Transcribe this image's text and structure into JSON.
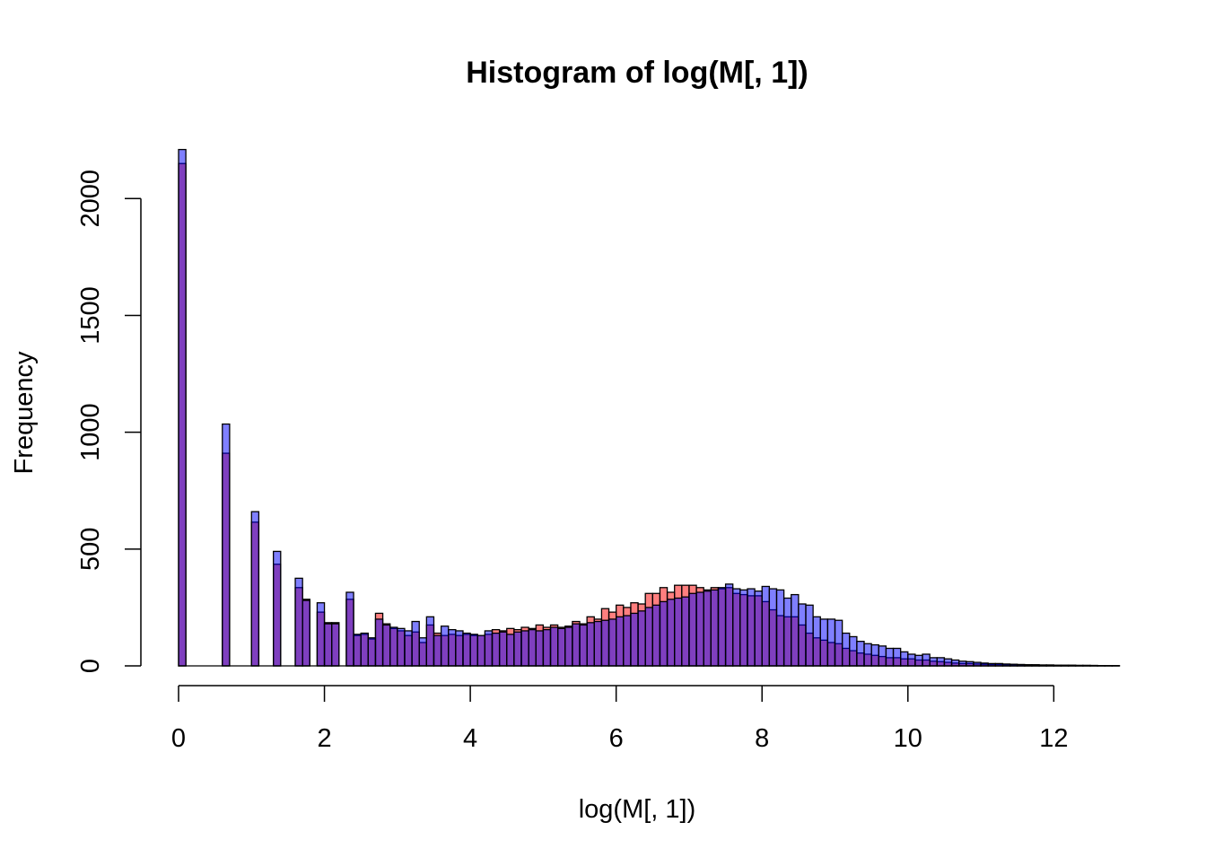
{
  "chart_data": {
    "type": "bar",
    "title": "Histogram of log(M[, 1])",
    "xlabel": "log(M[, 1])",
    "ylabel": "Frequency",
    "xlim": [
      0,
      12.9
    ],
    "ylim": [
      0,
      2220
    ],
    "x_ticks": [
      0,
      2,
      4,
      6,
      8,
      10,
      12
    ],
    "x_tick_labels": [
      "0",
      "2",
      "4",
      "6",
      "8",
      "10",
      "12"
    ],
    "y_ticks": [
      0,
      500,
      1000,
      1500,
      2000
    ],
    "y_tick_labels": [
      "0",
      "500",
      "1000",
      "1500",
      "2000"
    ],
    "bin_width": 0.1,
    "grid": false,
    "legend": "none",
    "series": [
      {
        "color": "#ff000080",
        "bins": [
          [
            0.0,
            2150
          ],
          [
            0.6,
            910
          ],
          [
            1.0,
            615
          ],
          [
            1.3,
            435
          ],
          [
            1.6,
            335
          ],
          [
            1.7,
            285
          ],
          [
            1.9,
            230
          ],
          [
            2.0,
            185
          ],
          [
            2.1,
            185
          ],
          [
            2.3,
            285
          ],
          [
            2.4,
            130
          ],
          [
            2.5,
            135
          ],
          [
            2.6,
            115
          ],
          [
            2.7,
            225
          ],
          [
            2.8,
            180
          ],
          [
            2.9,
            160
          ],
          [
            3.0,
            150
          ],
          [
            3.1,
            130
          ],
          [
            3.2,
            145
          ],
          [
            3.3,
            100
          ],
          [
            3.4,
            175
          ],
          [
            3.5,
            140
          ],
          [
            3.6,
            130
          ],
          [
            3.7,
            135
          ],
          [
            3.8,
            130
          ],
          [
            3.9,
            135
          ],
          [
            4.0,
            130
          ],
          [
            4.1,
            130
          ],
          [
            4.2,
            135
          ],
          [
            4.3,
            155
          ],
          [
            4.4,
            150
          ],
          [
            4.5,
            160
          ],
          [
            4.6,
            155
          ],
          [
            4.7,
            165
          ],
          [
            4.8,
            160
          ],
          [
            4.9,
            175
          ],
          [
            5.0,
            165
          ],
          [
            5.1,
            175
          ],
          [
            5.2,
            165
          ],
          [
            5.3,
            170
          ],
          [
            5.4,
            190
          ],
          [
            5.5,
            180
          ],
          [
            5.6,
            210
          ],
          [
            5.7,
            200
          ],
          [
            5.8,
            245
          ],
          [
            5.9,
            230
          ],
          [
            6.0,
            260
          ],
          [
            6.1,
            250
          ],
          [
            6.2,
            270
          ],
          [
            6.3,
            265
          ],
          [
            6.4,
            310
          ],
          [
            6.5,
            310
          ],
          [
            6.6,
            335
          ],
          [
            6.7,
            315
          ],
          [
            6.8,
            345
          ],
          [
            6.9,
            345
          ],
          [
            7.0,
            345
          ],
          [
            7.1,
            335
          ],
          [
            7.2,
            325
          ],
          [
            7.3,
            335
          ],
          [
            7.4,
            330
          ],
          [
            7.5,
            335
          ],
          [
            7.6,
            310
          ],
          [
            7.7,
            305
          ],
          [
            7.8,
            300
          ],
          [
            7.9,
            300
          ],
          [
            8.0,
            275
          ],
          [
            8.1,
            240
          ],
          [
            8.2,
            215
          ],
          [
            8.3,
            210
          ],
          [
            8.4,
            210
          ],
          [
            8.5,
            175
          ],
          [
            8.6,
            140
          ],
          [
            8.7,
            120
          ],
          [
            8.8,
            110
          ],
          [
            8.9,
            100
          ],
          [
            9.0,
            95
          ],
          [
            9.1,
            75
          ],
          [
            9.2,
            65
          ],
          [
            9.3,
            55
          ],
          [
            9.4,
            50
          ],
          [
            9.5,
            45
          ],
          [
            9.6,
            40
          ],
          [
            9.7,
            35
          ],
          [
            9.8,
            35
          ],
          [
            9.9,
            30
          ],
          [
            10.0,
            30
          ],
          [
            10.1,
            25
          ],
          [
            10.2,
            25
          ],
          [
            10.3,
            20
          ],
          [
            10.4,
            18
          ],
          [
            10.5,
            15
          ],
          [
            10.6,
            12
          ],
          [
            10.7,
            10
          ],
          [
            10.8,
            10
          ],
          [
            10.9,
            8
          ],
          [
            11.0,
            7
          ],
          [
            11.1,
            6
          ],
          [
            11.2,
            6
          ],
          [
            11.3,
            5
          ],
          [
            11.4,
            5
          ],
          [
            11.5,
            4
          ],
          [
            11.6,
            4
          ],
          [
            11.7,
            3
          ],
          [
            11.8,
            3
          ],
          [
            11.9,
            3
          ],
          [
            12.0,
            2
          ],
          [
            12.1,
            2
          ],
          [
            12.2,
            2
          ],
          [
            12.3,
            2
          ],
          [
            12.4,
            2
          ],
          [
            12.5,
            1
          ],
          [
            12.6,
            1
          ],
          [
            12.7,
            1
          ],
          [
            12.8,
            1
          ]
        ]
      },
      {
        "color": "#0000ff80",
        "bins": [
          [
            0.0,
            2210
          ],
          [
            0.6,
            1035
          ],
          [
            1.0,
            660
          ],
          [
            1.3,
            490
          ],
          [
            1.6,
            375
          ],
          [
            1.7,
            280
          ],
          [
            1.9,
            270
          ],
          [
            2.0,
            180
          ],
          [
            2.1,
            180
          ],
          [
            2.3,
            315
          ],
          [
            2.4,
            135
          ],
          [
            2.5,
            140
          ],
          [
            2.6,
            120
          ],
          [
            2.7,
            200
          ],
          [
            2.8,
            175
          ],
          [
            2.9,
            165
          ],
          [
            3.0,
            160
          ],
          [
            3.1,
            150
          ],
          [
            3.2,
            190
          ],
          [
            3.3,
            120
          ],
          [
            3.4,
            210
          ],
          [
            3.5,
            130
          ],
          [
            3.6,
            170
          ],
          [
            3.7,
            155
          ],
          [
            3.8,
            150
          ],
          [
            3.9,
            140
          ],
          [
            4.0,
            135
          ],
          [
            4.1,
            130
          ],
          [
            4.2,
            150
          ],
          [
            4.3,
            140
          ],
          [
            4.4,
            145
          ],
          [
            4.5,
            135
          ],
          [
            4.6,
            145
          ],
          [
            4.7,
            150
          ],
          [
            4.8,
            155
          ],
          [
            4.9,
            150
          ],
          [
            5.0,
            155
          ],
          [
            5.1,
            165
          ],
          [
            5.2,
            160
          ],
          [
            5.3,
            165
          ],
          [
            5.4,
            180
          ],
          [
            5.5,
            175
          ],
          [
            5.6,
            185
          ],
          [
            5.7,
            190
          ],
          [
            5.8,
            195
          ],
          [
            5.9,
            200
          ],
          [
            6.0,
            210
          ],
          [
            6.1,
            215
          ],
          [
            6.2,
            225
          ],
          [
            6.3,
            235
          ],
          [
            6.4,
            250
          ],
          [
            6.5,
            260
          ],
          [
            6.6,
            275
          ],
          [
            6.7,
            285
          ],
          [
            6.8,
            290
          ],
          [
            6.9,
            295
          ],
          [
            7.0,
            310
          ],
          [
            7.1,
            315
          ],
          [
            7.2,
            320
          ],
          [
            7.3,
            325
          ],
          [
            7.4,
            335
          ],
          [
            7.5,
            350
          ],
          [
            7.6,
            330
          ],
          [
            7.7,
            325
          ],
          [
            7.8,
            330
          ],
          [
            7.9,
            320
          ],
          [
            8.0,
            340
          ],
          [
            8.1,
            330
          ],
          [
            8.2,
            325
          ],
          [
            8.3,
            290
          ],
          [
            8.4,
            305
          ],
          [
            8.5,
            265
          ],
          [
            8.6,
            260
          ],
          [
            8.7,
            210
          ],
          [
            8.8,
            200
          ],
          [
            8.9,
            200
          ],
          [
            9.0,
            195
          ],
          [
            9.1,
            140
          ],
          [
            9.2,
            125
          ],
          [
            9.3,
            105
          ],
          [
            9.4,
            95
          ],
          [
            9.5,
            90
          ],
          [
            9.6,
            85
          ],
          [
            9.7,
            75
          ],
          [
            9.8,
            75
          ],
          [
            9.9,
            60
          ],
          [
            10.0,
            50
          ],
          [
            10.1,
            45
          ],
          [
            10.2,
            50
          ],
          [
            10.3,
            35
          ],
          [
            10.4,
            35
          ],
          [
            10.5,
            30
          ],
          [
            10.6,
            25
          ],
          [
            10.7,
            20
          ],
          [
            10.8,
            18
          ],
          [
            10.9,
            15
          ],
          [
            11.0,
            12
          ],
          [
            11.1,
            10
          ],
          [
            11.2,
            10
          ],
          [
            11.3,
            8
          ],
          [
            11.4,
            7
          ],
          [
            11.5,
            6
          ],
          [
            11.6,
            5
          ],
          [
            11.7,
            5
          ],
          [
            11.8,
            4
          ],
          [
            11.9,
            4
          ],
          [
            12.0,
            3
          ],
          [
            12.1,
            3
          ],
          [
            12.2,
            3
          ],
          [
            12.3,
            2
          ],
          [
            12.4,
            2
          ],
          [
            12.5,
            2
          ],
          [
            12.6,
            1
          ],
          [
            12.7,
            1
          ],
          [
            12.8,
            1
          ]
        ]
      }
    ]
  }
}
